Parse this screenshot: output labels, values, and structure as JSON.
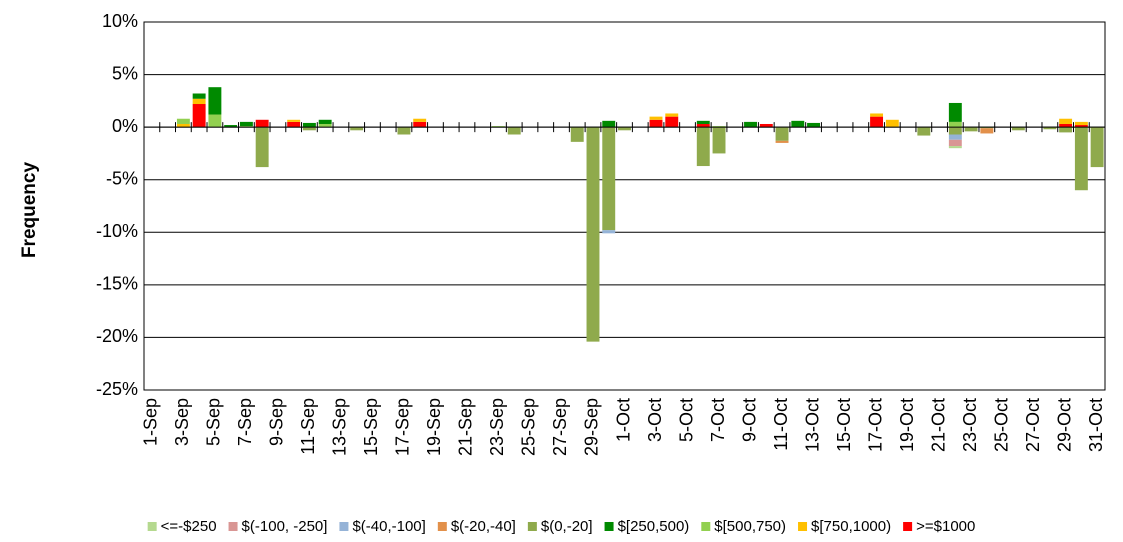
{
  "chart_data": {
    "type": "bar",
    "stacked": true,
    "y_label": "Frequency",
    "categories": [
      "1-Sep",
      null,
      "3-Sep",
      null,
      "5-Sep",
      null,
      "7-Sep",
      null,
      "9-Sep",
      null,
      "11-Sep",
      null,
      "13-Sep",
      null,
      "15-Sep",
      null,
      "17-Sep",
      null,
      "19-Sep",
      null,
      "21-Sep",
      null,
      "23-Sep",
      null,
      "25-Sep",
      null,
      "27-Sep",
      null,
      "29-Sep",
      null,
      "1-Oct",
      null,
      "3-Oct",
      null,
      "5-Oct",
      null,
      "7-Oct",
      null,
      "9-Oct",
      null,
      "11-Oct",
      null,
      "13-Oct",
      null,
      "15-Oct",
      null,
      "17-Oct",
      null,
      "19-Oct",
      null,
      "21-Oct",
      null,
      "23-Oct",
      null,
      "25-Oct",
      null,
      "27-Oct",
      null,
      "29-Oct",
      null,
      "31-Oct"
    ],
    "ylim": [
      -25,
      10
    ],
    "yticks": [
      {
        "value": -25,
        "label": "-25%"
      },
      {
        "value": -20,
        "label": "-20%"
      },
      {
        "value": -15,
        "label": "-15%"
      },
      {
        "value": -10,
        "label": "-10%"
      },
      {
        "value": -5,
        "label": "-5%"
      },
      {
        "value": 0,
        "label": "0%"
      },
      {
        "value": 5,
        "label": "5%"
      },
      {
        "value": 10,
        "label": "10%"
      }
    ],
    "grid": true,
    "legend": "bottom",
    "series": [
      {
        "name": "<=-$250",
        "color": "#b5d98f",
        "values": [
          0,
          0,
          0,
          0,
          0,
          0,
          0,
          0,
          0,
          0,
          0,
          0,
          0,
          0,
          0,
          0,
          0,
          0,
          0,
          0,
          0,
          0,
          0,
          0,
          0,
          0,
          0,
          0,
          0,
          0,
          0,
          0,
          0,
          0,
          0,
          0,
          0,
          0,
          0,
          0,
          0,
          0,
          0,
          0,
          0,
          0,
          0,
          0,
          0,
          0,
          0,
          -0.2,
          0,
          0,
          0,
          0,
          0,
          0,
          0,
          0,
          0
        ]
      },
      {
        "name": "$(-100, -250]",
        "color": "#d99694",
        "values": [
          0,
          0,
          0,
          0,
          0,
          0,
          0,
          0,
          0,
          0,
          0,
          0,
          0,
          0,
          0,
          0,
          0,
          0,
          0,
          0,
          0,
          0,
          0,
          0,
          0,
          0,
          0,
          0,
          0,
          0,
          0,
          0,
          0,
          0,
          0,
          0,
          0,
          0,
          0,
          0,
          0,
          0,
          0,
          0,
          0,
          0,
          0,
          0,
          0,
          0,
          0,
          -0.6,
          0,
          0,
          0,
          0,
          0,
          0,
          0,
          0,
          0
        ]
      },
      {
        "name": "$(-40,-100]",
        "color": "#95b3d7",
        "values": [
          0,
          0,
          0,
          0,
          0,
          0,
          0,
          0,
          0,
          0,
          0,
          0,
          0,
          0,
          0,
          0,
          0,
          0,
          0,
          0,
          0,
          0,
          0,
          0,
          0,
          0,
          0,
          0,
          0,
          -0.3,
          0,
          0,
          0,
          0,
          0,
          0,
          0,
          0,
          0,
          0,
          0,
          0,
          0,
          0,
          0,
          0,
          0,
          0,
          0,
          0,
          0,
          -0.5,
          0,
          0,
          0,
          0,
          0,
          0,
          0,
          0,
          0
        ]
      },
      {
        "name": "$(-20,-40]",
        "color": "#e2904a",
        "values": [
          0,
          0,
          0,
          0,
          0,
          0,
          0,
          0,
          0,
          0,
          0,
          0,
          0,
          0,
          0,
          0,
          0,
          0,
          0,
          0,
          0,
          0,
          0,
          0,
          0,
          0,
          0,
          0,
          0,
          0,
          0,
          0,
          0,
          0,
          0,
          0,
          0,
          0,
          0,
          0,
          -0.2,
          0,
          0,
          0,
          0,
          0,
          0,
          0,
          0,
          0,
          0,
          0,
          0,
          -0.5,
          0,
          0,
          0,
          0,
          0,
          0,
          0
        ]
      },
      {
        "name": "$(0,-20]",
        "color": "#8faa4c",
        "values": [
          0,
          0,
          0,
          0,
          0,
          0,
          0,
          -3.8,
          0,
          0,
          -0.3,
          0,
          0,
          -0.3,
          0,
          0,
          -0.7,
          0,
          0,
          0,
          0,
          0,
          0,
          -0.7,
          0,
          0,
          0,
          -1.4,
          -20.4,
          -9.8,
          -0.3,
          0,
          0,
          0,
          0,
          -3.7,
          -2.5,
          0,
          0,
          0,
          -1.3,
          0,
          0,
          0,
          0,
          0,
          0,
          0,
          0,
          -0.8,
          0,
          -0.7,
          -0.4,
          -0.1,
          0,
          -0.3,
          0,
          -0.2,
          -0.5,
          -6.0,
          -3.8
        ]
      },
      {
        "name": "$[250,500)",
        "color": "#008a00",
        "values": [
          0,
          0,
          0,
          0.5,
          2.6,
          0.2,
          0.4,
          0,
          0,
          0,
          0.4,
          0.4,
          0,
          0,
          0,
          0,
          0,
          0,
          0,
          0,
          0,
          0,
          0,
          0,
          0,
          0,
          0,
          0,
          0,
          0.6,
          0,
          0,
          0,
          0,
          0,
          0.3,
          0,
          0,
          0.5,
          0,
          0,
          0.6,
          0.4,
          0,
          0,
          0,
          0,
          0,
          0,
          0,
          0,
          1.8,
          0,
          0,
          0,
          0,
          0,
          0,
          0,
          0,
          0
        ]
      },
      {
        "name": "$[500,750)",
        "color": "#92d050",
        "values": [
          0,
          0,
          0.5,
          0,
          1.2,
          0,
          0.1,
          0,
          0,
          0,
          0,
          0.3,
          0,
          0,
          0,
          0,
          0,
          0,
          0,
          0,
          0,
          0,
          0.1,
          0,
          0,
          0,
          0,
          0,
          0,
          0,
          0,
          0,
          0,
          0,
          0,
          0,
          0.1,
          0,
          0,
          0,
          0,
          0,
          0,
          0,
          0,
          0,
          0,
          0,
          0,
          0,
          0,
          0.5,
          0,
          0,
          0,
          0,
          0,
          0,
          0,
          0,
          0
        ]
      },
      {
        "name": "$[750,1000)",
        "color": "#ffc000",
        "values": [
          0,
          0,
          0.3,
          0.5,
          0,
          0,
          0,
          0,
          0,
          0.2,
          0,
          0,
          0,
          0,
          0,
          0,
          0,
          0.3,
          0,
          0,
          0,
          0,
          0,
          0,
          0,
          0,
          0,
          0,
          0,
          0,
          0,
          0,
          0.3,
          0.3,
          0,
          0,
          0,
          0,
          0,
          0,
          0,
          0,
          0,
          0,
          0,
          0,
          0.3,
          0.7,
          0,
          0,
          0,
          0,
          0,
          0,
          0,
          0,
          0,
          0,
          0.5,
          0.3,
          0
        ]
      },
      {
        "name": ">=$1000",
        "color": "#ff0000",
        "values": [
          0,
          0,
          0,
          2.2,
          0,
          0,
          0,
          0.7,
          0,
          0.5,
          0,
          0,
          0,
          0,
          0,
          0,
          0,
          0.5,
          0,
          0,
          0,
          0,
          0,
          0,
          0,
          0,
          0,
          0,
          0,
          0,
          0,
          0,
          0.7,
          1.0,
          0,
          0.3,
          0,
          0,
          0,
          0.3,
          0,
          0,
          0,
          0,
          0,
          0,
          1.0,
          0,
          0,
          0,
          0,
          0,
          0,
          0,
          0,
          0,
          0,
          0,
          0.3,
          0.2,
          0
        ]
      }
    ]
  }
}
